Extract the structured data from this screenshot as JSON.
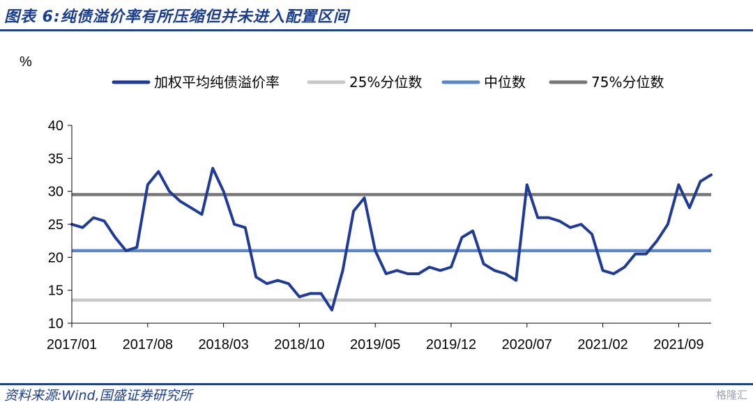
{
  "header": {
    "title": "图表 6:纯债溢价率有所压缩但并未进入配置区间"
  },
  "footer": {
    "source": "资料来源:Wind,国盛证券研究所",
    "watermark": "格隆汇"
  },
  "chart_data": {
    "type": "line",
    "title": "",
    "xlabel": "",
    "ylabel": "%",
    "ylim": [
      10,
      40
    ],
    "xlim": [
      "2017/01",
      "2021/12"
    ],
    "yticks": [
      10,
      15,
      20,
      25,
      30,
      35,
      40
    ],
    "xticks": [
      "2017/01",
      "2017/08",
      "2018/03",
      "2018/10",
      "2019/05",
      "2019/12",
      "2020/07",
      "2021/02",
      "2021/09"
    ],
    "legend_position": "top",
    "grid": false,
    "series": [
      {
        "name": "加权平均纯债溢价率",
        "color": "#1f3b95",
        "x": [
          "2017/01",
          "2017/02",
          "2017/03",
          "2017/04",
          "2017/05",
          "2017/06",
          "2017/07",
          "2017/08",
          "2017/09",
          "2017/10",
          "2017/11",
          "2017/12",
          "2018/01",
          "2018/02",
          "2018/03",
          "2018/04",
          "2018/05",
          "2018/06",
          "2018/07",
          "2018/08",
          "2018/09",
          "2018/10",
          "2018/11",
          "2018/12",
          "2019/01",
          "2019/02",
          "2019/03",
          "2019/04",
          "2019/05",
          "2019/06",
          "2019/07",
          "2019/08",
          "2019/09",
          "2019/10",
          "2019/11",
          "2019/12",
          "2020/01",
          "2020/02",
          "2020/03",
          "2020/04",
          "2020/05",
          "2020/06",
          "2020/07",
          "2020/08",
          "2020/09",
          "2020/10",
          "2020/11",
          "2020/12",
          "2021/01",
          "2021/02",
          "2021/03",
          "2021/04",
          "2021/05",
          "2021/06",
          "2021/07",
          "2021/08",
          "2021/09",
          "2021/10",
          "2021/11",
          "2021/12"
        ],
        "values": [
          25.0,
          24.5,
          26.0,
          25.5,
          23.0,
          21.0,
          21.5,
          31.0,
          33.0,
          30.0,
          28.5,
          27.5,
          26.5,
          33.5,
          30.0,
          25.0,
          24.5,
          17.0,
          16.0,
          16.5,
          16.0,
          14.0,
          14.5,
          14.5,
          12.0,
          18.0,
          27.0,
          29.0,
          21.0,
          17.5,
          18.0,
          17.5,
          17.5,
          18.5,
          18.0,
          18.5,
          23.0,
          24.0,
          19.0,
          18.0,
          17.5,
          16.5,
          31.0,
          26.0,
          26.0,
          25.5,
          24.5,
          25.0,
          23.5,
          18.0,
          17.5,
          18.5,
          20.5,
          20.5,
          22.5,
          25.0,
          31.0,
          27.5,
          31.5,
          32.5
        ]
      },
      {
        "name": "25%分位数",
        "color": "#c8c8c8",
        "values": [
          13.5
        ]
      },
      {
        "name": "中位数",
        "color": "#5b87c8",
        "values": [
          21.0
        ]
      },
      {
        "name": "75%分位数",
        "color": "#777777",
        "values": [
          29.5
        ]
      }
    ]
  }
}
